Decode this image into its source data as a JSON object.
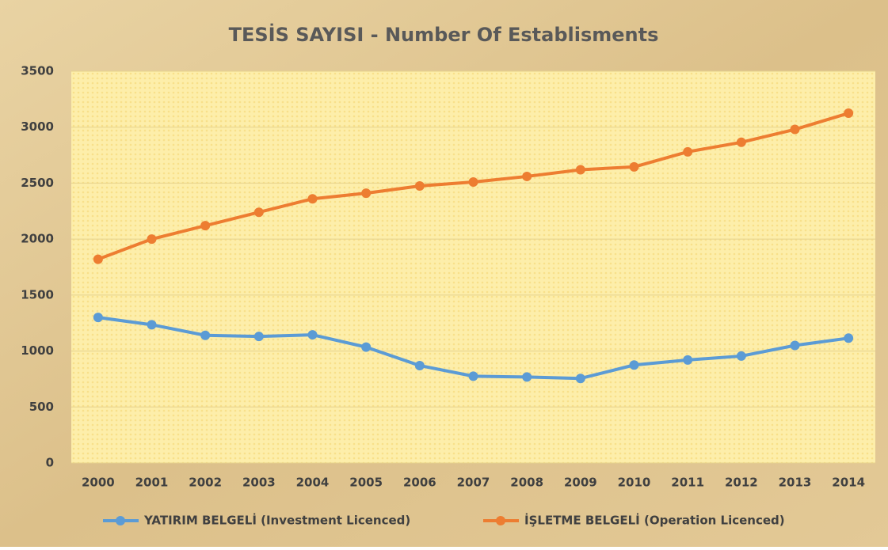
{
  "chart_data": {
    "type": "line",
    "title": "TESİS SAYISI - Number Of Establisments",
    "categories": [
      "2000",
      "2001",
      "2002",
      "2003",
      "2004",
      "2005",
      "2006",
      "2007",
      "2008",
      "2009",
      "2010",
      "2011",
      "2012",
      "2013",
      "2014"
    ],
    "series": [
      {
        "name": "YATIRIM BELGELİ (Investment Licenced)",
        "color": "#5b9bd5",
        "values": [
          1300,
          1235,
          1140,
          1130,
          1145,
          1035,
          870,
          775,
          768,
          755,
          875,
          920,
          955,
          1050,
          1115
        ]
      },
      {
        "name": "İŞLETME BELGELİ (Operation Licenced)",
        "color": "#ed7d31",
        "values": [
          1820,
          2000,
          2120,
          2240,
          2360,
          2410,
          2475,
          2510,
          2560,
          2620,
          2645,
          2780,
          2865,
          2980,
          3125
        ]
      }
    ],
    "ylim": [
      0,
      3500
    ],
    "yticks": [
      0,
      500,
      1000,
      1500,
      2000,
      2500,
      3000,
      3500
    ],
    "grid": true,
    "legend": "bottom"
  }
}
